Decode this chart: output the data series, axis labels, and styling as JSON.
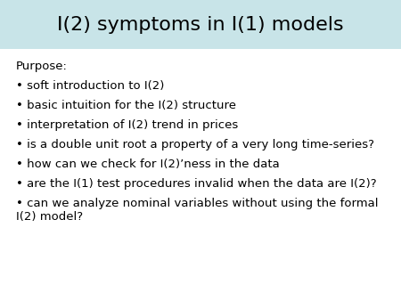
{
  "title": "I(2) symptoms in I(1) models",
  "title_bg_color": "#c8e4e8",
  "title_fontsize": 16,
  "body_fontsize": 9.5,
  "background_color": "#ffffff",
  "purpose_label": "Purpose:",
  "bullet_lines": [
    "soft introduction to I(2)",
    "basic intuition for the I(2) structure",
    "interpretation of I(2) trend in prices",
    "is a double unit root a property of a very long time-series?",
    "how can we check for I(2)’ness in the data",
    "are the I(1) test procedures invalid when the data are I(2)?",
    "can we analyze nominal variables without using the formal\nI(2) model?"
  ],
  "bullet_char": "•"
}
